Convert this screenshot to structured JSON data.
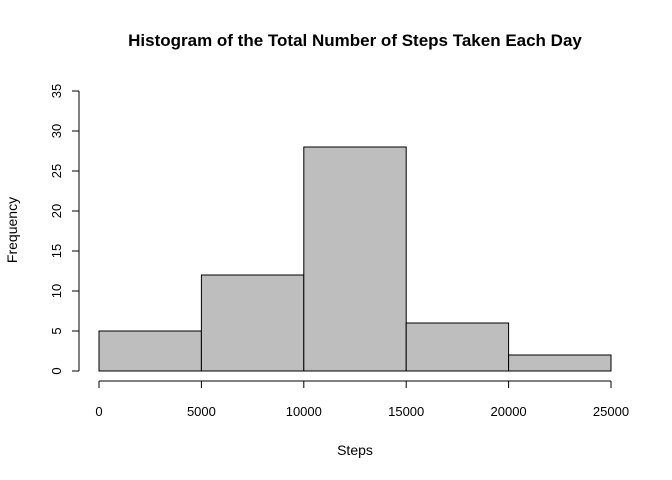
{
  "chart_data": {
    "type": "bar",
    "title": "Histogram of the Total Number of Steps Taken Each Day",
    "xlabel": "Steps",
    "ylabel": "Frequency",
    "bins": [
      {
        "from": 0,
        "to": 5000,
        "count": 5
      },
      {
        "from": 5000,
        "to": 10000,
        "count": 12
      },
      {
        "from": 10000,
        "to": 15000,
        "count": 28
      },
      {
        "from": 15000,
        "to": 20000,
        "count": 6
      },
      {
        "from": 20000,
        "to": 25000,
        "count": 2
      }
    ],
    "xlim": [
      0,
      25000
    ],
    "ylim": [
      0,
      35
    ],
    "x_ticks": [
      0,
      5000,
      10000,
      15000,
      20000,
      25000
    ],
    "x_tick_labels": [
      "0",
      "5000",
      "10000",
      "15000",
      "20000",
      "25000"
    ],
    "y_ticks": [
      0,
      5,
      10,
      15,
      20,
      25,
      30,
      35
    ],
    "y_tick_labels": [
      "0",
      "5",
      "10",
      "15",
      "20",
      "25",
      "30",
      "35"
    ],
    "bar_color": "#bebebe",
    "grid": false,
    "legend": "none"
  }
}
